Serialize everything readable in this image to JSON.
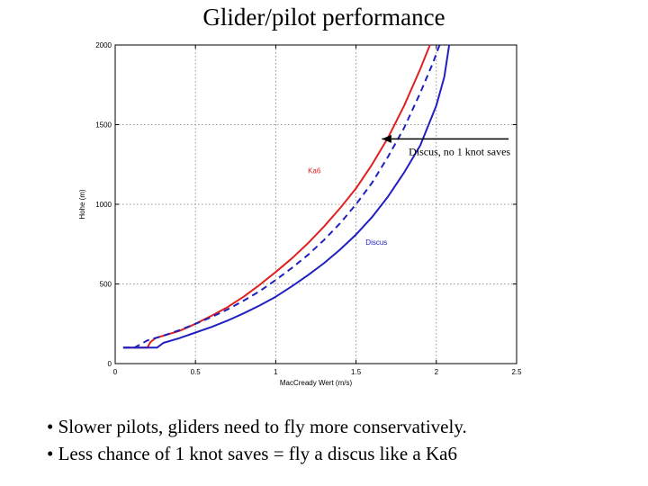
{
  "slide": {
    "title": "Glider/pilot performance",
    "bullets": [
      "• Slower pilots, gliders need to fly more conservatively.",
      "• Less chance of 1 knot saves = fly a discus like a Ka6"
    ]
  },
  "chart_data": {
    "type": "line",
    "xlabel": "MacCready Wert (m/s)",
    "ylabel": "Hohe (m)",
    "xlim": [
      0,
      2.5
    ],
    "ylim": [
      0,
      2000
    ],
    "xticks": [
      "0",
      "0.5",
      "1",
      "1.5",
      "2",
      "2.5"
    ],
    "xtick_values": [
      0,
      0.5,
      1,
      1.5,
      2,
      2.5
    ],
    "yticks": [
      "0",
      "500",
      "1000",
      "1500",
      "2000"
    ],
    "ytick_values": [
      0,
      500,
      1000,
      1500,
      2000
    ],
    "grid": true,
    "series": [
      {
        "name": "Ka6",
        "color": "#e02020",
        "style": "solid",
        "x": [
          0.05,
          0.2,
          0.22,
          0.25,
          0.3,
          0.4,
          0.5,
          0.6,
          0.7,
          0.8,
          0.9,
          1.0,
          1.1,
          1.2,
          1.3,
          1.4,
          1.5,
          1.6,
          1.7,
          1.8,
          1.9,
          1.96
        ],
        "y": [
          100,
          100,
          135,
          160,
          175,
          205,
          250,
          300,
          355,
          420,
          495,
          575,
          660,
          755,
          860,
          975,
          1100,
          1250,
          1420,
          1620,
          1850,
          2000
        ]
      },
      {
        "name": "Discus, no 1 knot saves",
        "color": "#2020c0",
        "style": "dashed",
        "x": [
          0.05,
          0.12,
          0.2,
          0.3,
          0.4,
          0.5,
          0.6,
          0.7,
          0.8,
          0.9,
          1.0,
          1.1,
          1.2,
          1.3,
          1.4,
          1.5,
          1.6,
          1.7,
          1.8,
          1.9,
          1.98,
          2.02
        ],
        "y": [
          100,
          100,
          145,
          175,
          210,
          250,
          292,
          340,
          395,
          455,
          525,
          600,
          682,
          775,
          880,
          1000,
          1135,
          1300,
          1480,
          1700,
          1890,
          2000
        ]
      },
      {
        "name": "Discus",
        "color": "#2020c0",
        "style": "solid",
        "x": [
          0.05,
          0.26,
          0.3,
          0.4,
          0.5,
          0.6,
          0.7,
          0.8,
          0.9,
          1.0,
          1.1,
          1.2,
          1.3,
          1.4,
          1.5,
          1.6,
          1.7,
          1.8,
          1.9,
          2.0,
          2.05,
          2.08
        ],
        "y": [
          100,
          100,
          130,
          160,
          195,
          230,
          270,
          315,
          365,
          420,
          485,
          555,
          630,
          715,
          810,
          920,
          1050,
          1200,
          1370,
          1620,
          1800,
          2000
        ]
      }
    ],
    "labels": [
      {
        "text": "Ka6",
        "x": 1.2,
        "y": 1195,
        "color": "#e02020"
      },
      {
        "text": "Discus",
        "x": 1.56,
        "y": 745,
        "color": "#2020c0"
      }
    ],
    "annotation": {
      "text": "Discus, no 1 knot saves",
      "arrow_from": [
        2.45,
        1410
      ],
      "arrow_to": [
        1.65,
        1410
      ]
    }
  }
}
